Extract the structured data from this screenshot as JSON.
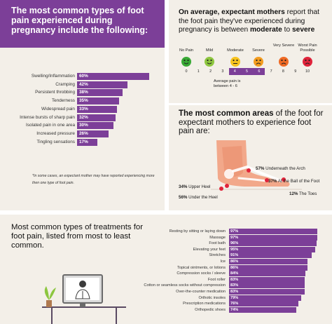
{
  "colors": {
    "accent": "#7c3f98",
    "panel_bg": "#f3efe8",
    "pin_red": "#e0233a"
  },
  "pregnancy_pain": {
    "title": "The most common types of foot pain experienced during pregnancy include the following:",
    "footnote": "*In some cases, an expectant mother may have reported experiencing more then one type of foot pain."
  },
  "scale": {
    "heading_parts": [
      "On average, ",
      "expectant mothers",
      " report that the foot pain they've experienced during pregnancy is between ",
      "moderate",
      " to ",
      "severe"
    ],
    "faces": [
      {
        "label": "No Pain",
        "color": "#39a935",
        "icon": "happy-face-icon"
      },
      {
        "label": "Mild",
        "color": "#8dc63f",
        "icon": "smile-face-icon"
      },
      {
        "label": "Moderate",
        "color": "#f7c31f",
        "icon": "neutral-face-icon"
      },
      {
        "label": "Severe",
        "color": "#f39c1f",
        "icon": "frown-face-icon"
      },
      {
        "label": "Very Severe",
        "color": "#ef6a24",
        "icon": "sad-face-icon"
      },
      {
        "label": "Worst Pain Possible",
        "color": "#e0233a",
        "icon": "crying-face-icon"
      }
    ],
    "numbers": [
      "0",
      "1",
      "2",
      "3",
      "4",
      "5",
      "6",
      "7",
      "8",
      "9",
      "10"
    ],
    "average_label": "Average pain is between 4 - 6"
  },
  "areas": {
    "heading_parts": [
      "The most common areas",
      " of the foot for expectant mothers to experience foot pain are:"
    ],
    "pins": [
      {
        "pct": "57%",
        "text": " Underneath the Arch"
      },
      {
        "pct": "37%",
        "text": " At the Ball of the Foot"
      },
      {
        "pct": "34%",
        "text": " Upper Heel"
      },
      {
        "pct": "12%",
        "text": " The Toes"
      },
      {
        "pct": "56%",
        "text": " Under the Heel"
      }
    ]
  },
  "treatments": {
    "title": "Most common types of treatments for foot pain, listed from most to least common."
  },
  "chart_data": [
    {
      "type": "bar",
      "title": "The most common types of foot pain experienced during pregnancy include the following:",
      "categories": [
        "Swelling/Inflammation",
        "Cramping",
        "Persistent throbbing",
        "Tenderness",
        "Widespread pain",
        "Intense bursts of sharp pain",
        "Isolated pain in one area",
        "Increased pressure",
        "Tingling sensations"
      ],
      "values": [
        60,
        42,
        38,
        35,
        33,
        32,
        30,
        26,
        17
      ],
      "value_labels": [
        "60%",
        "42%",
        "38%",
        "35%",
        "33%",
        "32%",
        "30%",
        "26%",
        "17%"
      ],
      "xlim": [
        0,
        60
      ]
    },
    {
      "type": "bar",
      "title": "Most common types of treatments for foot pain, listed from most to least common.",
      "categories": [
        "Resting by sitting or laying down",
        "Massage",
        "Foot bath",
        "Elevating your feet",
        "Stretches",
        "Ice",
        "Topical ointments, or lotions",
        "Compression socks / sleeve",
        "Foot roller",
        "Cotton or seamless socks without compression",
        "Over-the-counter medication",
        "Orthotic insoles",
        "Prescription medications",
        "Orthopedic shoes"
      ],
      "values": [
        97,
        97,
        96,
        95,
        91,
        86,
        86,
        84,
        83,
        83,
        83,
        79,
        76,
        74
      ],
      "value_labels": [
        "97%",
        "97%",
        "96%",
        "95%",
        "91%",
        "86%",
        "86%",
        "84%",
        "83%",
        "83%",
        "83%",
        "79%",
        "76%",
        "74%"
      ],
      "xlim": [
        0,
        97
      ]
    }
  ]
}
